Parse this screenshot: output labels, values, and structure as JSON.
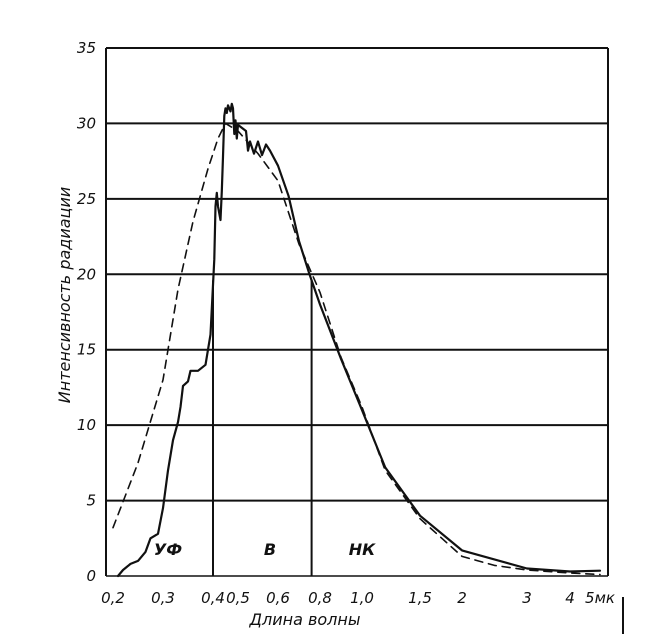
{
  "chart_data": {
    "type": "line",
    "xlabel": "Длина волны",
    "ylabel": "Интенсивность радиации",
    "ylim": [
      0,
      35
    ],
    "yticks": [
      0,
      5,
      10,
      15,
      20,
      25,
      30,
      35
    ],
    "ytick_labels": [
      "0",
      "5",
      "10",
      "15",
      "20",
      "25",
      "30",
      "35"
    ],
    "x_scale": "nonlinear",
    "xticks": [
      0.2,
      0.3,
      0.4,
      0.5,
      0.6,
      0.8,
      1.0,
      1.5,
      2,
      3,
      4,
      5
    ],
    "xtick_labels": [
      "0,2",
      "0,3",
      "0,4",
      "0,5",
      "0,6",
      "0,8",
      "1,0",
      "1,5",
      "2",
      "3",
      "4",
      "5мк"
    ],
    "grid": "horizontal",
    "series": [
      {
        "style": "solid",
        "points": [
          [
            0.21,
            0.0
          ],
          [
            0.22,
            0.4
          ],
          [
            0.235,
            0.8
          ],
          [
            0.25,
            1.0
          ],
          [
            0.265,
            1.6
          ],
          [
            0.275,
            2.5
          ],
          [
            0.29,
            2.8
          ],
          [
            0.3,
            4.5
          ],
          [
            0.31,
            7.0
          ],
          [
            0.32,
            9.0
          ],
          [
            0.33,
            10.2
          ],
          [
            0.335,
            11.2
          ],
          [
            0.34,
            12.6
          ],
          [
            0.35,
            12.9
          ],
          [
            0.355,
            13.6
          ],
          [
            0.37,
            13.6
          ],
          [
            0.385,
            14.0
          ],
          [
            0.395,
            16.0
          ],
          [
            0.405,
            21.0
          ],
          [
            0.41,
            24.5
          ],
          [
            0.415,
            25.4
          ],
          [
            0.42,
            24.5
          ],
          [
            0.43,
            23.6
          ],
          [
            0.435,
            25.5
          ],
          [
            0.44,
            27.8
          ],
          [
            0.445,
            30.5
          ],
          [
            0.45,
            31.0
          ],
          [
            0.455,
            30.7
          ],
          [
            0.46,
            31.2
          ],
          [
            0.47,
            30.8
          ],
          [
            0.475,
            31.3
          ],
          [
            0.48,
            31.0
          ],
          [
            0.485,
            29.3
          ],
          [
            0.49,
            30.2
          ],
          [
            0.495,
            29.0
          ],
          [
            0.5,
            29.9
          ],
          [
            0.52,
            29.5
          ],
          [
            0.525,
            28.2
          ],
          [
            0.53,
            28.8
          ],
          [
            0.54,
            28.0
          ],
          [
            0.55,
            28.8
          ],
          [
            0.56,
            27.9
          ],
          [
            0.57,
            28.6
          ],
          [
            0.58,
            28.2
          ],
          [
            0.6,
            27.2
          ],
          [
            0.65,
            25.2
          ],
          [
            0.7,
            22.2
          ],
          [
            0.75,
            20.0
          ],
          [
            0.8,
            18.0
          ],
          [
            0.9,
            14.4
          ],
          [
            1.0,
            11.0
          ],
          [
            1.2,
            7.2
          ],
          [
            1.5,
            4.0
          ],
          [
            2.0,
            1.7
          ],
          [
            3.0,
            0.5
          ],
          [
            4.0,
            0.3
          ],
          [
            5.0,
            0.35
          ]
        ]
      },
      {
        "style": "dashed",
        "points": [
          [
            0.2,
            3.2
          ],
          [
            0.25,
            7.5
          ],
          [
            0.3,
            13.0
          ],
          [
            0.33,
            19.0
          ],
          [
            0.36,
            23.5
          ],
          [
            0.39,
            27.0
          ],
          [
            0.42,
            29.0
          ],
          [
            0.45,
            30.0
          ],
          [
            0.5,
            29.5
          ],
          [
            0.55,
            28.0
          ],
          [
            0.6,
            26.2
          ],
          [
            0.7,
            22.0
          ],
          [
            0.8,
            18.8
          ],
          [
            0.9,
            14.5
          ],
          [
            1.0,
            11.2
          ],
          [
            1.2,
            7.0
          ],
          [
            1.5,
            3.8
          ],
          [
            2.0,
            1.3
          ],
          [
            2.5,
            0.7
          ],
          [
            3.0,
            0.4
          ],
          [
            4.0,
            0.2
          ],
          [
            5.0,
            0.1
          ]
        ]
      }
    ],
    "dividers": [
      0.4,
      0.76
    ],
    "regions": [
      {
        "label": "УФ",
        "x": 0.31,
        "y": 1.4
      },
      {
        "label": "В",
        "x": 0.58,
        "y": 1.4
      },
      {
        "label": "НК",
        "x": 1.0,
        "y": 1.4
      }
    ]
  }
}
